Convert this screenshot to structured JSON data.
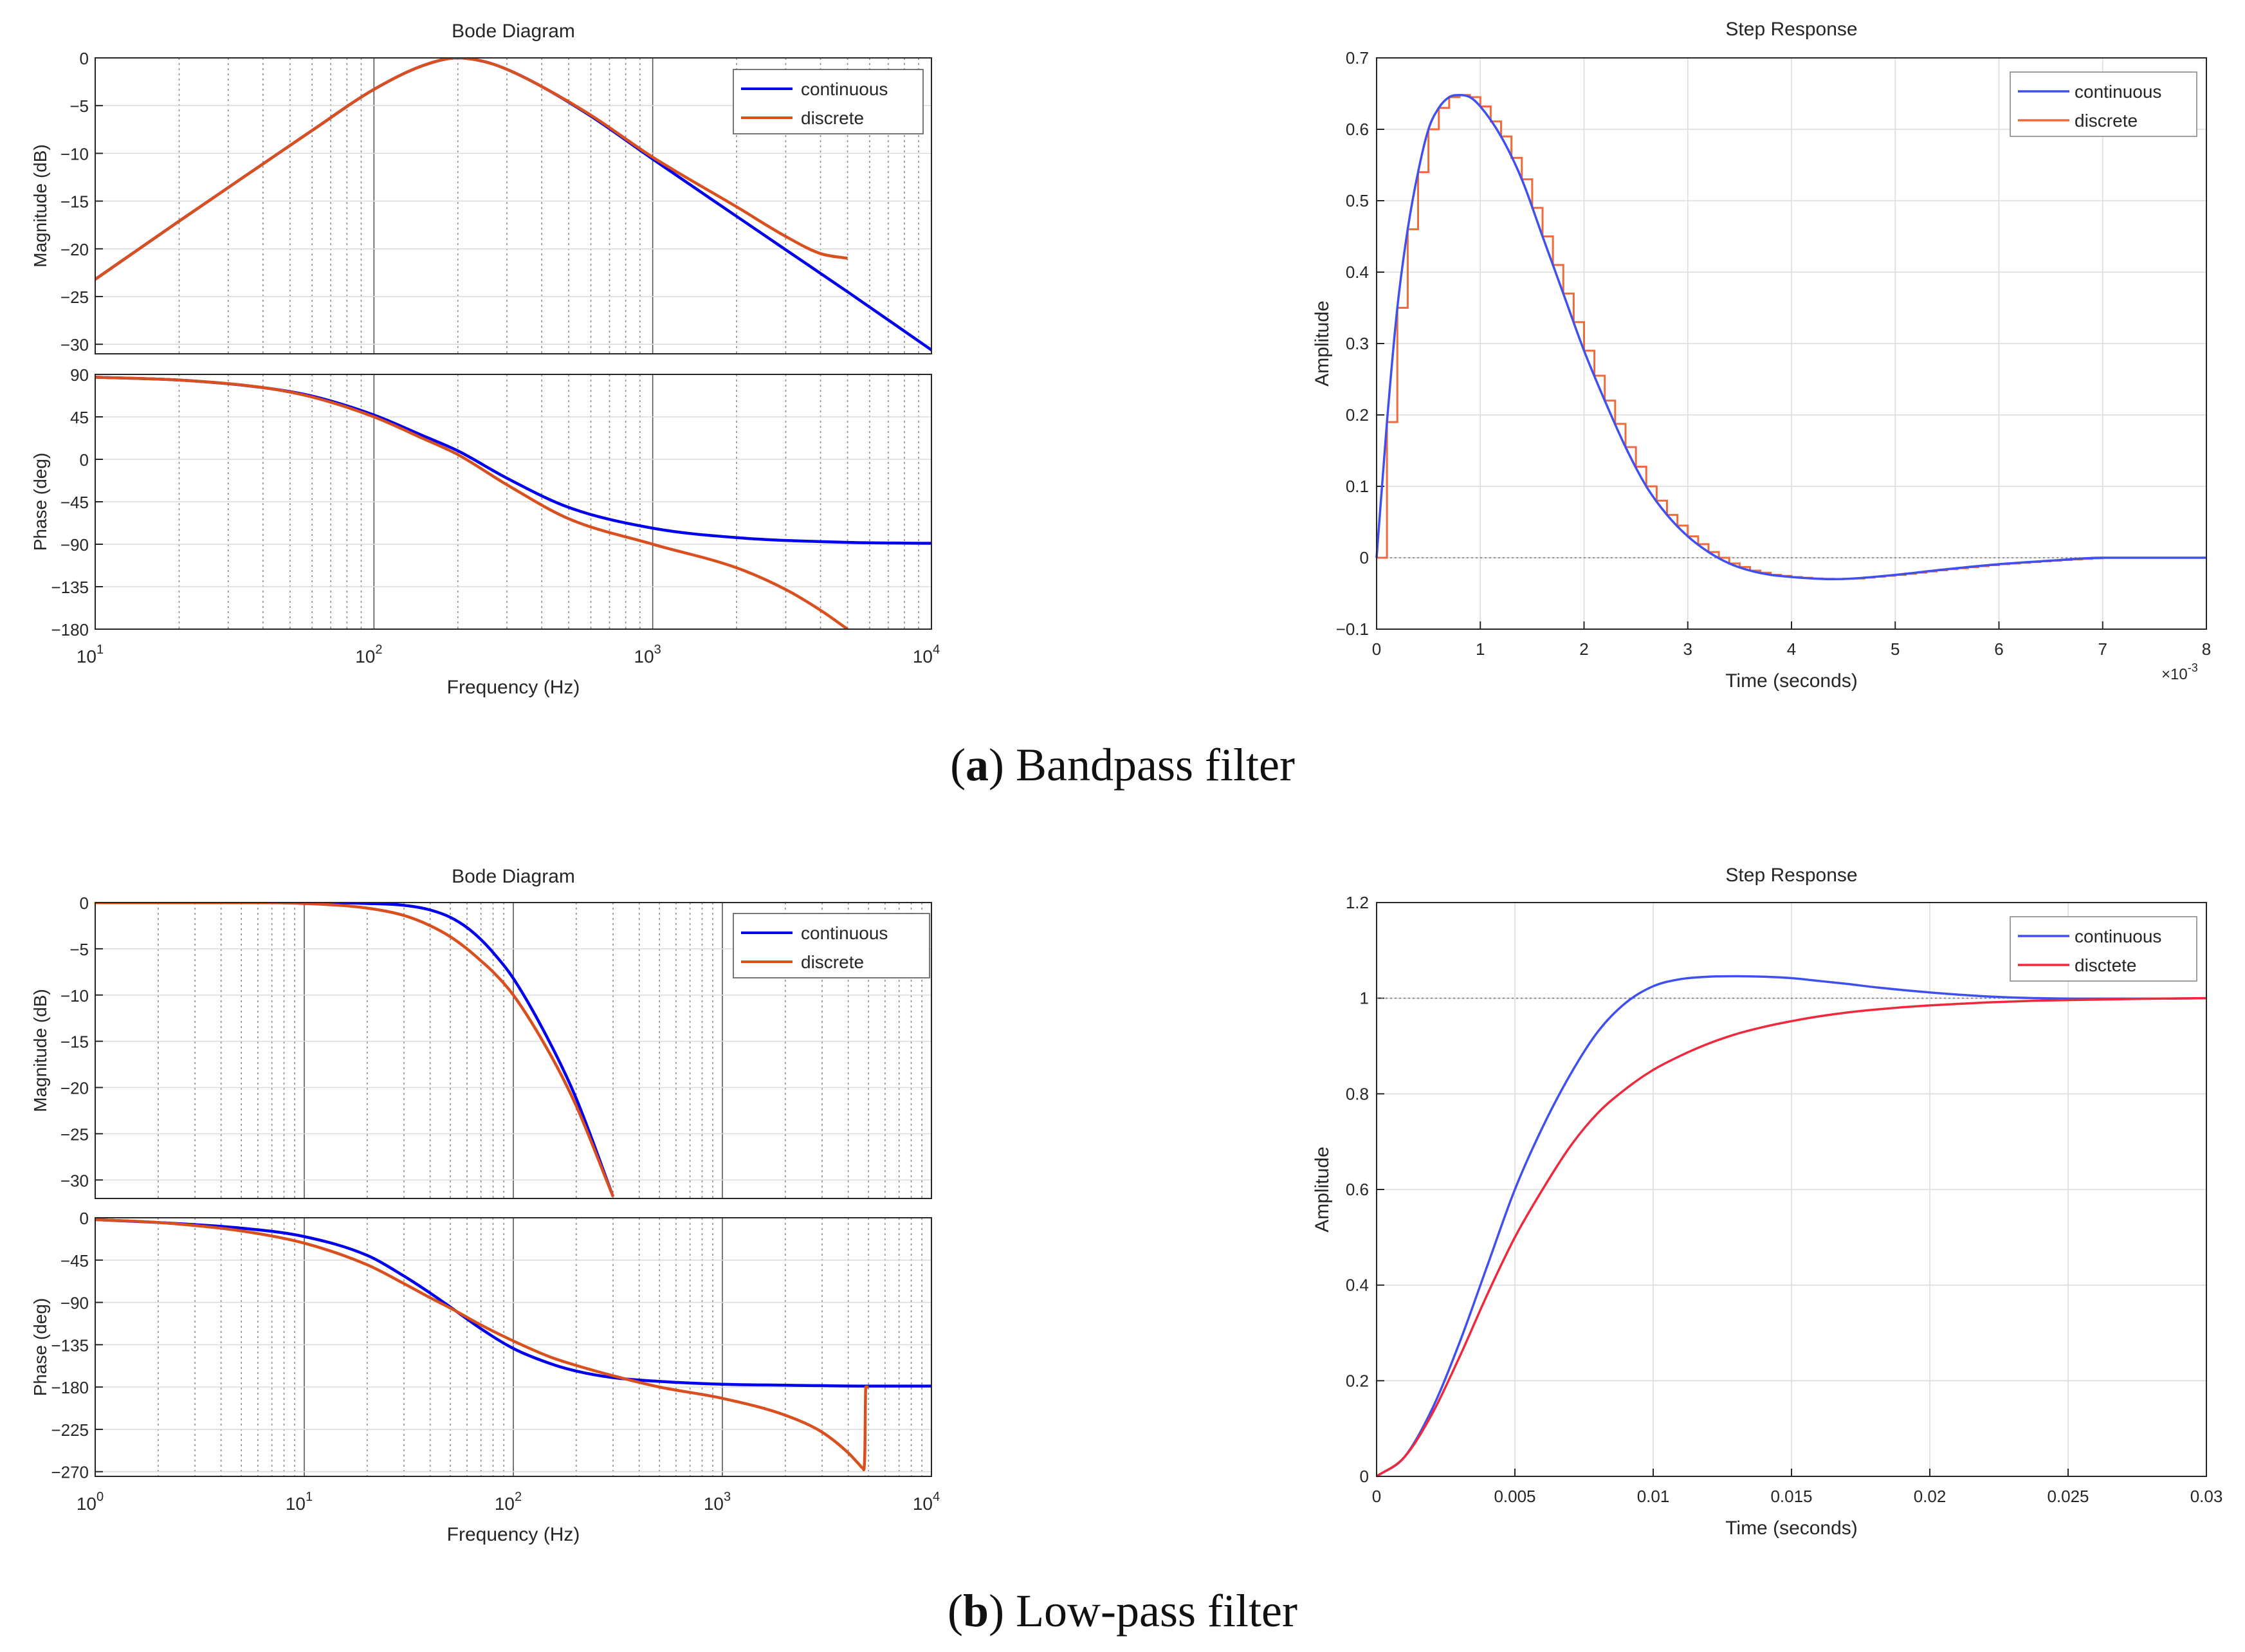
{
  "captions": {
    "a": {
      "letter": "a",
      "text": " Bandpass filter"
    },
    "b": {
      "letter": "b",
      "text": " Low-pass filter"
    }
  },
  "colors": {
    "continuous": "#0000ee",
    "discrete": "#d94f1e",
    "step_continuous": "#3f4ff0",
    "step_discrete_a": "#f06a3c",
    "step_discrete_b": "#f0283c",
    "grid": "#dcdcdc",
    "axis": "#262626"
  },
  "chart_data": [
    {
      "id": "bode_a",
      "type": "line",
      "title": "Bode Diagram",
      "xlabel": "Frequency  (Hz)",
      "xscale": "log",
      "xlim": [
        10,
        10000
      ],
      "x_tick_labels": [
        "10^1",
        "10^2",
        "10^3",
        "10^4"
      ],
      "legend": [
        "continuous",
        "discrete"
      ],
      "legend_position": "top-right",
      "panels": [
        {
          "ylabel": "Magnitude (dB)",
          "ylim": [
            -31,
            0
          ],
          "yticks": [
            0,
            -5,
            -10,
            -15,
            -20,
            -25,
            -30
          ],
          "series": [
            {
              "name": "continuous",
              "x": [
                10,
                20,
                40,
                60,
                100,
                150,
                200,
                250,
                300,
                400,
                600,
                1000,
                2000,
                3000,
                5000,
                10000
              ],
              "y": [
                -23.2,
                -17.1,
                -11.1,
                -7.6,
                -3.3,
                -0.8,
                0,
                -0.4,
                -1.2,
                -3.0,
                -6.1,
                -10.6,
                -16.6,
                -20.1,
                -24.5,
                -30.6
              ]
            },
            {
              "name": "discrete",
              "x": [
                10,
                20,
                40,
                60,
                100,
                150,
                200,
                250,
                300,
                400,
                600,
                1000,
                2000,
                3000,
                4000,
                5000
              ],
              "y": [
                -23.2,
                -17.1,
                -11.1,
                -7.6,
                -3.3,
                -0.8,
                0,
                -0.4,
                -1.2,
                -3.0,
                -6.0,
                -10.4,
                -15.6,
                -18.7,
                -20.5,
                -21.0
              ]
            }
          ]
        },
        {
          "ylabel": "Phase (deg)",
          "ylim": [
            -180,
            90
          ],
          "yticks": [
            90,
            45,
            0,
            -45,
            -90,
            -135,
            -180
          ],
          "series": [
            {
              "name": "continuous",
              "x": [
                10,
                20,
                40,
                60,
                100,
                150,
                200,
                300,
                500,
                1000,
                2000,
                5000,
                10000
              ],
              "y": [
                87,
                84,
                76,
                67,
                47,
                25,
                9,
                -20,
                -51,
                -73,
                -83,
                -88,
                -89
              ]
            },
            {
              "name": "discrete",
              "x": [
                10,
                20,
                40,
                60,
                100,
                150,
                200,
                300,
                500,
                1000,
                2000,
                3000,
                4000,
                5000
              ],
              "y": [
                87,
                84,
                76,
                66,
                45,
                22,
                5,
                -27,
                -63,
                -90,
                -115,
                -138,
                -160,
                -180
              ]
            }
          ]
        }
      ]
    },
    {
      "id": "step_a",
      "type": "line",
      "title": "Step Response",
      "xlabel": "Time (seconds)",
      "ylabel": "Amplitude",
      "xlim": [
        0,
        8
      ],
      "ylim": [
        -0.1,
        0.7
      ],
      "xticks": [
        0,
        1,
        2,
        3,
        4,
        5,
        6,
        7,
        8
      ],
      "yticks": [
        -0.1,
        0,
        0.1,
        0.2,
        0.3,
        0.4,
        0.5,
        0.6,
        0.7
      ],
      "x_multiplier": "×10",
      "x_multiplier_exp": "-3",
      "legend": [
        "continuous",
        "discrete"
      ],
      "legend_position": "top-right",
      "series": [
        {
          "name": "continuous",
          "x": [
            0,
            0.1,
            0.2,
            0.3,
            0.4,
            0.5,
            0.6,
            0.7,
            0.8,
            0.9,
            1.0,
            1.2,
            1.4,
            1.6,
            1.8,
            2.0,
            2.2,
            2.4,
            2.6,
            2.8,
            3.0,
            3.2,
            3.4,
            3.6,
            3.8,
            4.0,
            4.2,
            4.4,
            4.6,
            5.0,
            5.5,
            6.0,
            6.5,
            7.0,
            7.5,
            8.0
          ],
          "y": [
            0,
            0.19,
            0.35,
            0.46,
            0.54,
            0.6,
            0.63,
            0.645,
            0.648,
            0.645,
            0.632,
            0.59,
            0.53,
            0.45,
            0.37,
            0.29,
            0.22,
            0.155,
            0.1,
            0.06,
            0.03,
            0.008,
            -0.008,
            -0.018,
            -0.024,
            -0.027,
            -0.029,
            -0.03,
            -0.029,
            -0.024,
            -0.016,
            -0.009,
            -0.004,
            0.0,
            0.0,
            0.0
          ]
        },
        {
          "name": "discrete",
          "type": "stair",
          "sample_time": 0.1
        }
      ]
    },
    {
      "id": "bode_b",
      "type": "line",
      "title": "Bode Diagram",
      "xlabel": "Frequency  (Hz)",
      "xscale": "log",
      "xlim": [
        1,
        10000
      ],
      "x_tick_labels": [
        "10^0",
        "10^1",
        "10^2",
        "10^3",
        "10^4"
      ],
      "legend": [
        "continuous",
        "discrete"
      ],
      "legend_position": "top-right",
      "panels": [
        {
          "ylabel": "Magnitude (dB)",
          "ylim": [
            -32,
            0
          ],
          "yticks": [
            0,
            -5,
            -10,
            -15,
            -20,
            -25,
            -30
          ],
          "series": [
            {
              "name": "continuous",
              "x": [
                1,
                5,
                10,
                20,
                30,
                40,
                50,
                60,
                70,
                80,
                100,
                150,
                200,
                300
              ],
              "y": [
                0,
                0,
                0,
                -0.1,
                -0.3,
                -0.8,
                -1.6,
                -2.7,
                -4.0,
                -5.4,
                -8.2,
                -15.2,
                -21.2,
                -31.8
              ]
            },
            {
              "name": "discrete",
              "x": [
                1,
                5,
                10,
                20,
                30,
                40,
                50,
                60,
                70,
                80,
                100,
                150,
                200,
                300
              ],
              "y": [
                0,
                0,
                -0.1,
                -0.6,
                -1.4,
                -2.5,
                -3.7,
                -5.0,
                -6.3,
                -7.5,
                -10.0,
                -16.4,
                -22.0,
                -31.8
              ]
            }
          ]
        },
        {
          "ylabel": "Phase (deg)",
          "ylim": [
            -275,
            0
          ],
          "yticks": [
            0,
            -45,
            -90,
            -135,
            -180,
            -225,
            -270
          ],
          "series": [
            {
              "name": "continuous",
              "x": [
                1,
                2,
                5,
                10,
                20,
                30,
                40,
                50,
                70,
                100,
                150,
                200,
                300,
                500,
                1000,
                2000,
                5000,
                10000
              ],
              "y": [
                -2,
                -5,
                -11,
                -20,
                -40,
                -62,
                -80,
                -95,
                -118,
                -139,
                -155,
                -163,
                -170,
                -174,
                -177,
                -178,
                -179,
                -179
              ]
            },
            {
              "name": "discrete",
              "x": [
                1,
                2,
                5,
                10,
                20,
                30,
                40,
                50,
                70,
                100,
                150,
                200,
                300,
                500,
                1000,
                2000,
                3000,
                4000,
                4500,
                4700,
                4800,
                4850,
                5000
              ],
              "y": [
                -2,
                -5,
                -14,
                -27,
                -50,
                -70,
                -85,
                -96,
                -114,
                -131,
                -148,
                -157,
                -168,
                -180,
                -192,
                -210,
                -228,
                -250,
                -262,
                -266,
                -250,
                -180,
                -180
              ]
            }
          ]
        }
      ]
    },
    {
      "id": "step_b",
      "type": "line",
      "title": "Step Response",
      "xlabel": "Time (seconds)",
      "ylabel": "Amplitude",
      "xlim": [
        0,
        0.03
      ],
      "ylim": [
        0,
        1.2
      ],
      "xticks": [
        0,
        0.005,
        0.01,
        0.015,
        0.02,
        0.025,
        0.03
      ],
      "yticks": [
        0,
        0.2,
        0.4,
        0.6,
        0.8,
        1,
        1.2
      ],
      "legend": [
        "continuous",
        "disctete"
      ],
      "legend_position": "top-right",
      "series": [
        {
          "name": "continuous",
          "x": [
            0,
            0.001,
            0.002,
            0.003,
            0.004,
            0.005,
            0.006,
            0.007,
            0.008,
            0.009,
            0.01,
            0.011,
            0.012,
            0.013,
            0.014,
            0.015,
            0.016,
            0.017,
            0.018,
            0.02,
            0.022,
            0.024,
            0.026,
            0.028,
            0.03
          ],
          "y": [
            0,
            0.04,
            0.14,
            0.28,
            0.44,
            0.6,
            0.73,
            0.84,
            0.93,
            0.99,
            1.025,
            1.04,
            1.045,
            1.046,
            1.045,
            1.042,
            1.036,
            1.03,
            1.023,
            1.012,
            1.004,
            1.0,
            0.999,
            0.999,
            1.0
          ]
        },
        {
          "name": "disctete",
          "x": [
            0,
            0.001,
            0.002,
            0.003,
            0.004,
            0.005,
            0.006,
            0.007,
            0.008,
            0.009,
            0.01,
            0.011,
            0.012,
            0.013,
            0.014,
            0.015,
            0.016,
            0.017,
            0.018,
            0.019,
            0.02,
            0.022,
            0.024,
            0.026,
            0.028,
            0.03
          ],
          "y": [
            0,
            0.04,
            0.13,
            0.25,
            0.38,
            0.5,
            0.6,
            0.69,
            0.76,
            0.81,
            0.85,
            0.88,
            0.905,
            0.925,
            0.94,
            0.952,
            0.962,
            0.97,
            0.976,
            0.981,
            0.985,
            0.991,
            0.995,
            0.997,
            0.999,
            1.0
          ]
        }
      ]
    }
  ]
}
